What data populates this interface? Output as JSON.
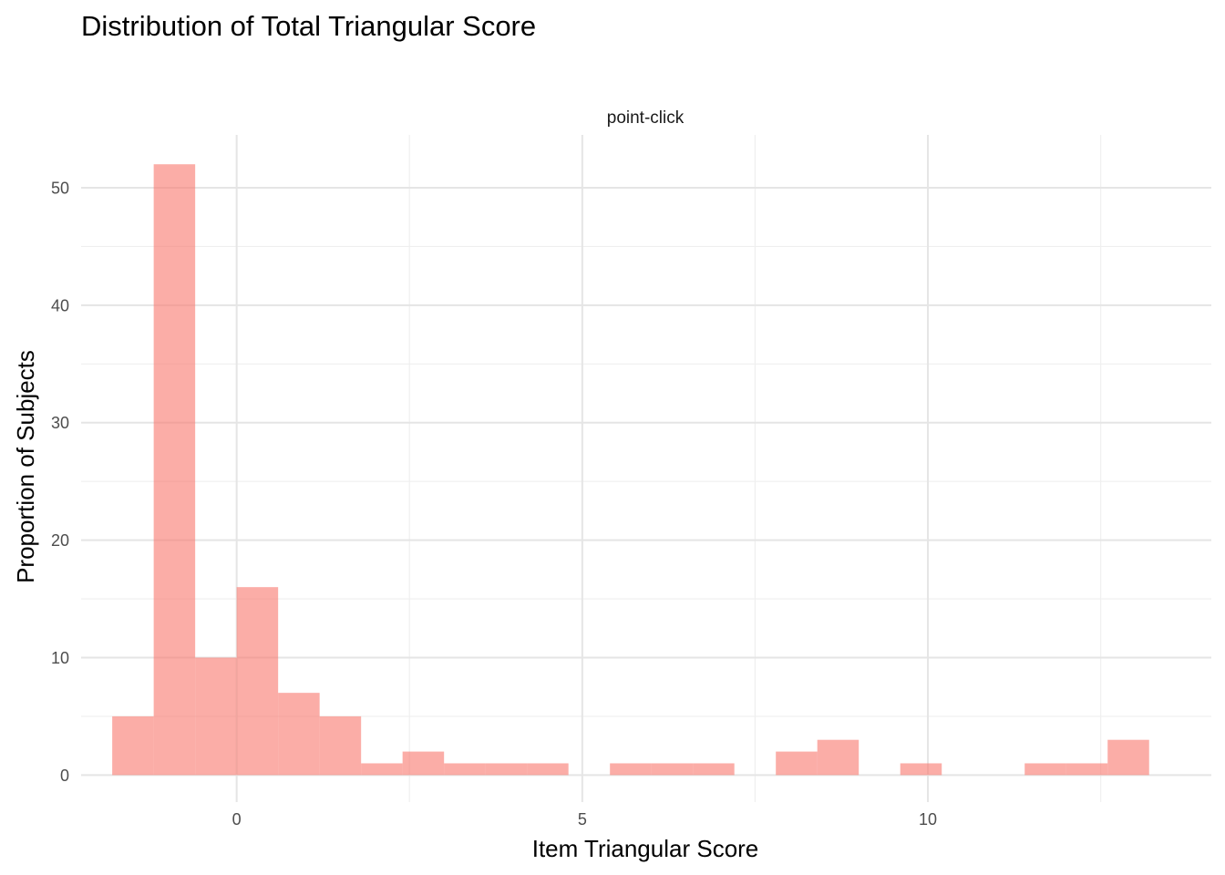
{
  "chart_data": {
    "type": "bar",
    "title": "Distribution of Total Triangular Score",
    "xlabel": "Item Triangular Score",
    "ylabel": "Proportion of Subjects",
    "facet_label": "point-click",
    "xlim": [
      -2.25,
      14.1
    ],
    "ylim": [
      -2.3,
      54.5
    ],
    "x_ticks": [
      0,
      5,
      10
    ],
    "x_tick_labels": [
      "0",
      "5",
      "10"
    ],
    "y_ticks": [
      0,
      10,
      20,
      30,
      40,
      50
    ],
    "y_tick_labels": [
      "0",
      "10",
      "20",
      "30",
      "40",
      "50"
    ],
    "grid": true,
    "legend": "none",
    "bar_color": "#f8766d",
    "bar_opacity": 0.6,
    "bin_width": 0.6,
    "bins": [
      {
        "x": -1.5,
        "count": 5
      },
      {
        "x": -0.9,
        "count": 52
      },
      {
        "x": -0.3,
        "count": 10
      },
      {
        "x": 0.3,
        "count": 16
      },
      {
        "x": 0.9,
        "count": 7
      },
      {
        "x": 1.5,
        "count": 5
      },
      {
        "x": 2.1,
        "count": 1
      },
      {
        "x": 2.7,
        "count": 2
      },
      {
        "x": 3.3,
        "count": 1
      },
      {
        "x": 3.9,
        "count": 1
      },
      {
        "x": 4.5,
        "count": 1
      },
      {
        "x": 5.1,
        "count": 0
      },
      {
        "x": 5.7,
        "count": 1
      },
      {
        "x": 6.3,
        "count": 1
      },
      {
        "x": 6.9,
        "count": 1
      },
      {
        "x": 7.5,
        "count": 0
      },
      {
        "x": 8.1,
        "count": 2
      },
      {
        "x": 8.7,
        "count": 3
      },
      {
        "x": 9.3,
        "count": 0
      },
      {
        "x": 9.9,
        "count": 1
      },
      {
        "x": 10.5,
        "count": 0
      },
      {
        "x": 11.1,
        "count": 0
      },
      {
        "x": 11.7,
        "count": 1
      },
      {
        "x": 12.3,
        "count": 1
      },
      {
        "x": 12.9,
        "count": 3
      }
    ]
  }
}
